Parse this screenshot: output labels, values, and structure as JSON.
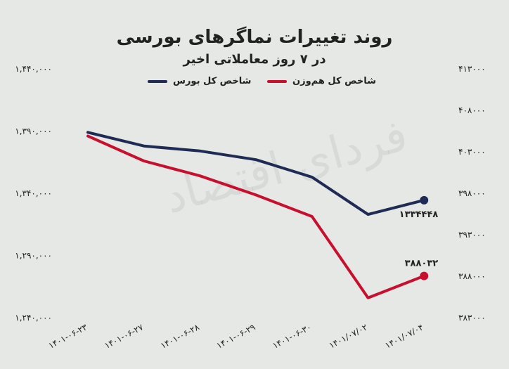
{
  "watermark": "فردای اقتصاد",
  "chart_data": {
    "type": "line",
    "title": "روند تغییرات نماگرهای بورسی",
    "subtitle": "در ۷ روز معاملاتی اخیر",
    "categories": [
      "۱۴۰۱-۰۶-۲۳",
      "۱۴۰۱-۰۶-۲۷",
      "۱۴۰۱-۰۶-۲۸",
      "۱۴۰۱-۰۶-۲۹",
      "۱۴۰۱-۰۶-۳۰",
      "۱۴۰۱/۰۷/۰۲",
      "۱۴۰۱/۰۷/۰۴"
    ],
    "left_axis": {
      "ticks": [
        "۱,۴۴۰,۰۰۰",
        "۱,۳۹۰,۰۰۰",
        "۱,۳۴۰,۰۰۰",
        "۱,۲۹۰,۰۰۰",
        "۱,۲۴۰,۰۰۰"
      ],
      "tick_values": [
        1440000,
        1390000,
        1340000,
        1290000,
        1240000
      ],
      "ylim": [
        1240000,
        1440000
      ]
    },
    "right_axis": {
      "ticks": [
        "۴۱۳۰۰۰",
        "۴۰۸۰۰۰",
        "۴۰۳۰۰۰",
        "۳۹۸۰۰۰",
        "۳۹۳۰۰۰",
        "۳۸۸۰۰۰",
        "۳۸۳۰۰۰"
      ],
      "tick_values": [
        413000,
        408000,
        403000,
        398000,
        393000,
        388000,
        383000
      ],
      "ylim": [
        383000,
        413000
      ]
    },
    "series": [
      {
        "name": "شاخص کل بورس",
        "axis": "left",
        "color": "#1f2a55",
        "values": [
          1389000,
          1378000,
          1374000,
          1367000,
          1353000,
          1323000,
          1334448
        ],
        "end_label": "۱۳۳۴۴۴۸"
      },
      {
        "name": "شاخص کل هم‌وزن",
        "axis": "right",
        "color": "#c8102e",
        "values": [
          404900,
          401900,
          400100,
          397800,
          395200,
          385400,
          388032
        ],
        "end_label": "۳۸۸۰۳۲"
      }
    ],
    "grid": false,
    "legend_position": "top"
  }
}
